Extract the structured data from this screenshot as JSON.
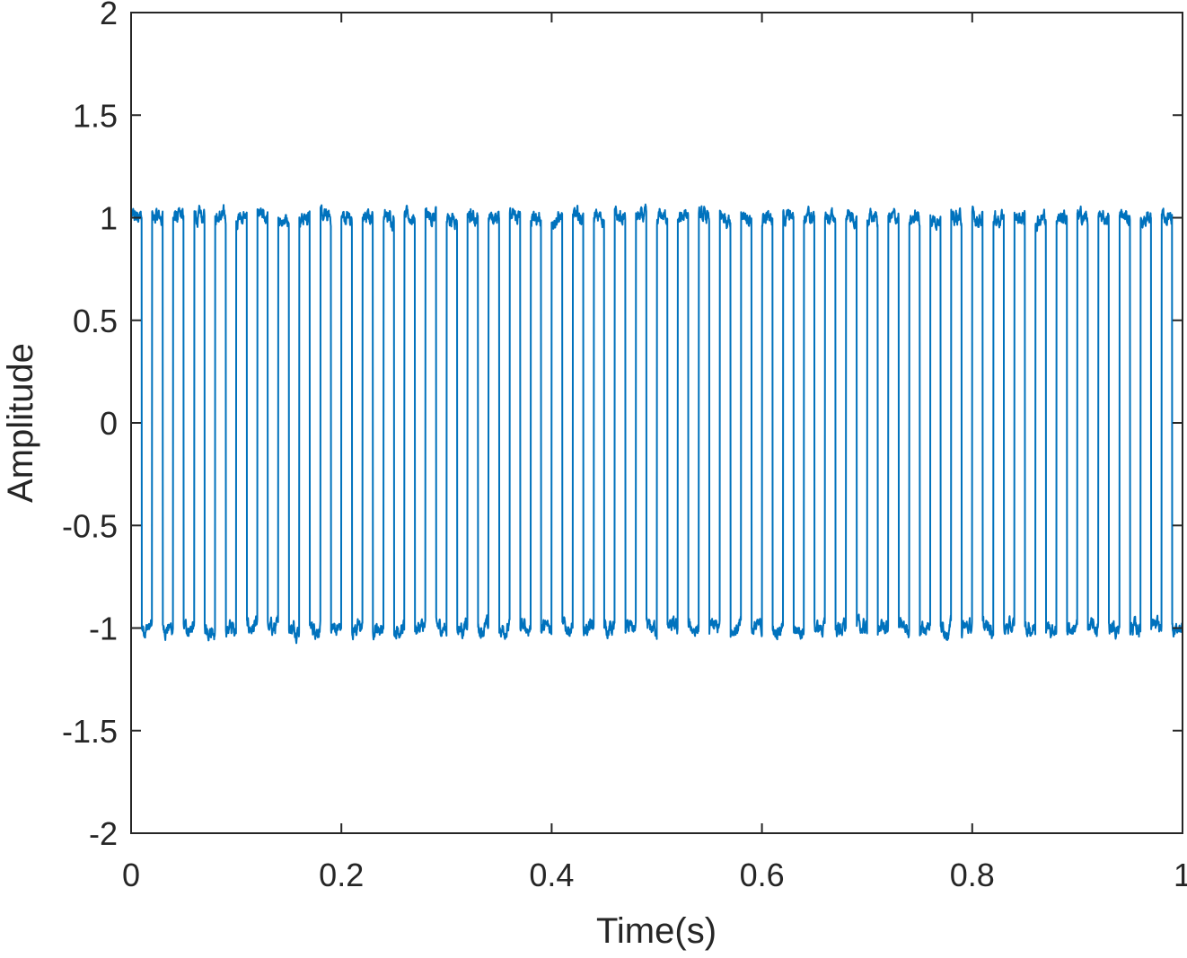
{
  "figure": {
    "background": "#ffffff",
    "axis_color": "#262626",
    "line_color": "#0072BD"
  },
  "chart_data": {
    "type": "line",
    "title": "",
    "xlabel": "Time(s)",
    "ylabel": "Amplitude",
    "xlim": [
      0,
      1
    ],
    "ylim": [
      -2,
      2
    ],
    "xticks": [
      0,
      0.2,
      0.4,
      0.6,
      0.8,
      1
    ],
    "xtick_labels": [
      "0",
      "0.2",
      "0.4",
      "0.6",
      "0.8",
      "1"
    ],
    "yticks": [
      -2,
      -1.5,
      -1,
      -0.5,
      0,
      0.5,
      1,
      1.5,
      2
    ],
    "ytick_labels": [
      "-2",
      "-1.5",
      "-1",
      "-0.5",
      "0",
      "0.5",
      "1",
      "1.5",
      "2"
    ],
    "grid": false,
    "legend": null,
    "series": [
      {
        "name": "square wave signal",
        "description": "Noisy square wave, amplitude ±1, ~50 Hz (period ≈ 0.02 s), starts high at t=0, ends low at t=1; noise spikes up to about ±0.1 around each level",
        "frequency_hz": 50,
        "amplitude": 1,
        "high_level": 1,
        "low_level": -1,
        "start_level": 1,
        "noise_peak": 0.1,
        "x_range": [
          0,
          1
        ]
      }
    ]
  }
}
